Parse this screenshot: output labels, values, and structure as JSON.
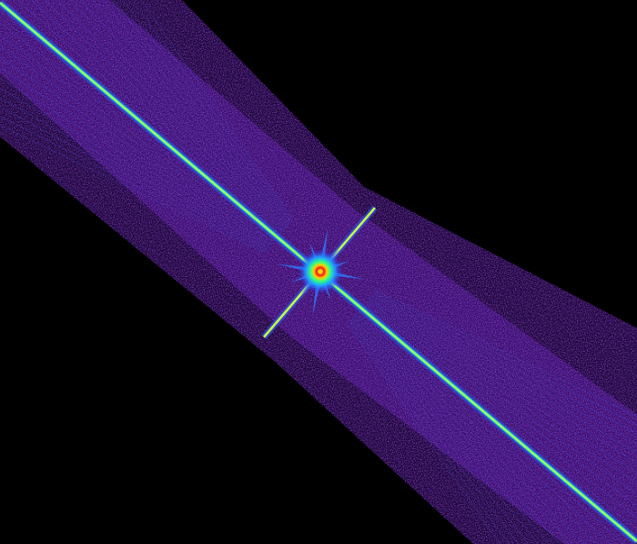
{
  "image": {
    "background_color": "#000000",
    "band_color": "#5a1aa8",
    "band_edge_color": "#2a0860",
    "streak_colors": [
      "#2b5cff",
      "#20e0c0",
      "#c8ff40",
      "#ff3020"
    ],
    "center_colors": [
      "#ff2020",
      "#ffd000",
      "#30ff80",
      "#20a0ff",
      "#3030ff"
    ]
  }
}
